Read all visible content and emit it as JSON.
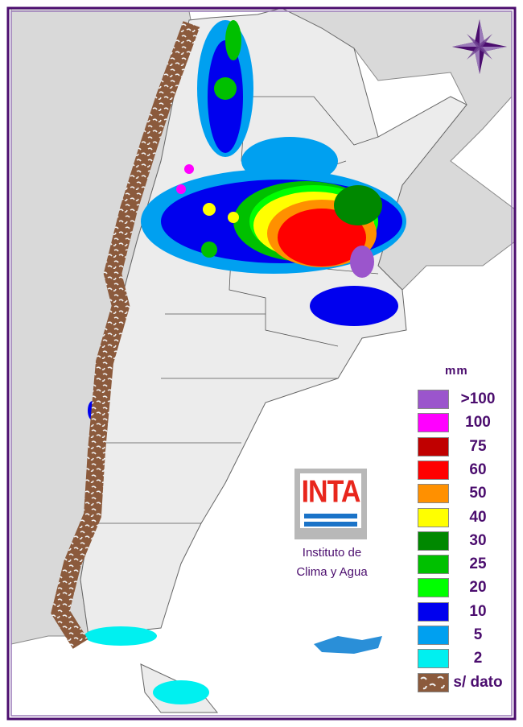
{
  "legend": {
    "unit": "mm",
    "items": [
      {
        "label": ">100",
        "color": "#9b55cc"
      },
      {
        "label": "100",
        "color": "#ff00ff"
      },
      {
        "label": "75",
        "color": "#c00000"
      },
      {
        "label": "60",
        "color": "#ff0000"
      },
      {
        "label": "50",
        "color": "#ff9000"
      },
      {
        "label": "40",
        "color": "#ffff00"
      },
      {
        "label": "30",
        "color": "#008800"
      },
      {
        "label": "25",
        "color": "#00c000"
      },
      {
        "label": "20",
        "color": "#00ff00"
      },
      {
        "label": "10",
        "color": "#0000ee"
      },
      {
        "label": "5",
        "color": "#00a0f0"
      },
      {
        "label": "2",
        "color": "#00f0f0"
      },
      {
        "label": "s/ dato",
        "color": "#8b5a3c"
      }
    ]
  },
  "logo": {
    "text": "INTA",
    "institute_line1": "Instituto de",
    "institute_line2": "Clima y Agua"
  },
  "icons": {
    "compass": "compass-rose-icon"
  },
  "colors": {
    "frame": "#4b0d6e",
    "land_neighbors": "#d9d9d9",
    "argentina": "#ececec"
  }
}
